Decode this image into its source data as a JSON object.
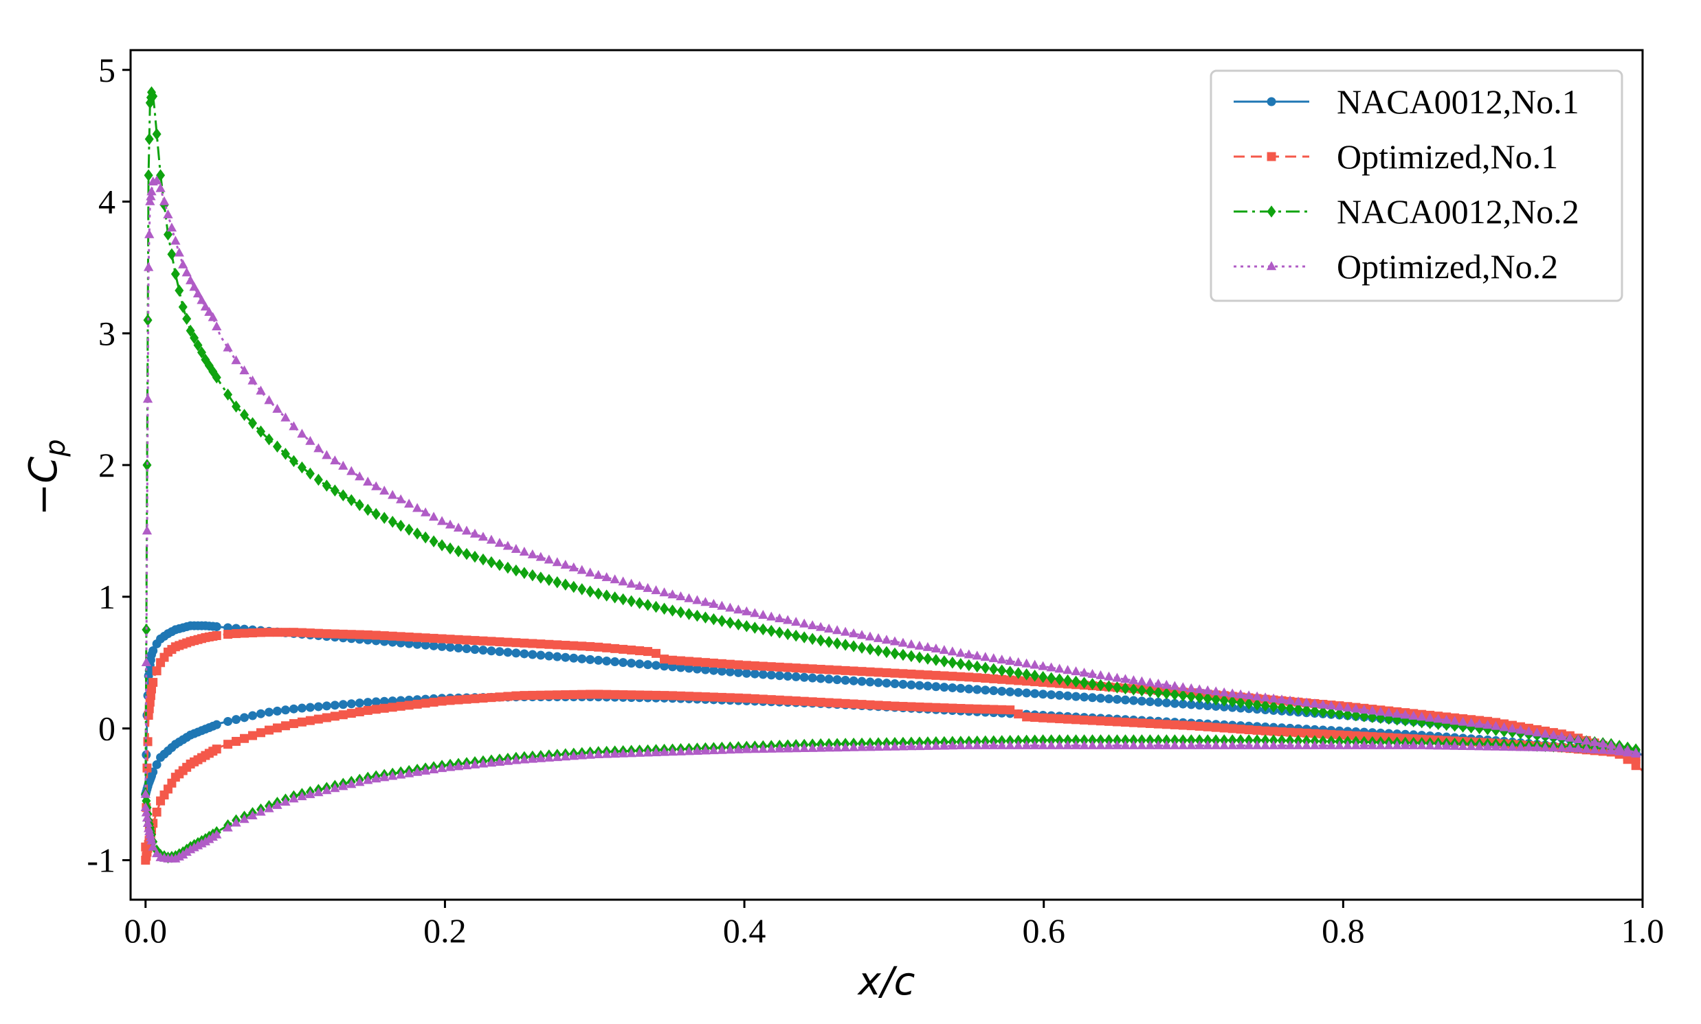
{
  "chart_data": {
    "type": "line",
    "title": "",
    "xlabel": "x/c",
    "ylabel": "−C",
    "ylabel_subscript": "p",
    "xlim": [
      -0.01,
      1.0
    ],
    "ylim": [
      -1.3,
      5.15
    ],
    "xticks": [
      0.0,
      0.2,
      0.4,
      0.6,
      0.8,
      1.0
    ],
    "xtick_labels": [
      "0.0",
      "0.2",
      "0.4",
      "0.6",
      "0.8",
      "1.0"
    ],
    "yticks": [
      -1,
      0,
      1,
      2,
      3,
      4,
      5
    ],
    "ytick_labels": [
      "-1",
      "0",
      "1",
      "2",
      "3",
      "4",
      "5"
    ],
    "grid": false,
    "legend_position": "top-right",
    "series": [
      {
        "name": "NACA0012,No.1",
        "color": "#1f77b4",
        "linestyle": "solid",
        "marker": "circle",
        "upper": {
          "x": [
            0.0,
            0.001,
            0.002,
            0.004,
            0.006,
            0.01,
            0.015,
            0.02,
            0.03,
            0.04,
            0.05,
            0.06,
            0.08,
            0.1,
            0.15,
            0.2,
            0.25,
            0.3,
            0.35,
            0.4,
            0.45,
            0.5,
            0.55,
            0.6,
            0.65,
            0.7,
            0.75,
            0.8,
            0.85,
            0.9,
            0.95,
            0.98,
            1.0
          ],
          "y": [
            -0.5,
            0.1,
            0.4,
            0.56,
            0.62,
            0.68,
            0.72,
            0.75,
            0.78,
            0.78,
            0.77,
            0.76,
            0.74,
            0.72,
            0.67,
            0.62,
            0.57,
            0.52,
            0.47,
            0.42,
            0.38,
            0.34,
            0.3,
            0.26,
            0.22,
            0.18,
            0.14,
            0.1,
            0.05,
            0.0,
            -0.08,
            -0.15,
            -0.2
          ]
        },
        "lower": {
          "x": [
            0.0,
            0.002,
            0.005,
            0.01,
            0.02,
            0.03,
            0.05,
            0.08,
            0.1,
            0.15,
            0.2,
            0.25,
            0.3,
            0.35,
            0.4,
            0.45,
            0.5,
            0.55,
            0.6,
            0.65,
            0.7,
            0.75,
            0.8,
            0.85,
            0.9,
            0.95,
            0.98,
            1.0
          ],
          "y": [
            -0.5,
            -0.42,
            -0.33,
            -0.22,
            -0.12,
            -0.05,
            0.04,
            0.12,
            0.15,
            0.2,
            0.23,
            0.24,
            0.24,
            0.23,
            0.21,
            0.19,
            0.16,
            0.13,
            0.1,
            0.07,
            0.04,
            0.01,
            -0.02,
            -0.05,
            -0.09,
            -0.14,
            -0.17,
            -0.2
          ]
        }
      },
      {
        "name": "Optimized,No.1",
        "color": "#f4584a",
        "linestyle": "dashed",
        "marker": "square",
        "upper": {
          "x": [
            0.0,
            0.001,
            0.002,
            0.004,
            0.006,
            0.01,
            0.015,
            0.02,
            0.03,
            0.04,
            0.05,
            0.06,
            0.08,
            0.1,
            0.12,
            0.15,
            0.2,
            0.25,
            0.3,
            0.32,
            0.34,
            0.345,
            0.35,
            0.4,
            0.45,
            0.5,
            0.55,
            0.6,
            0.65,
            0.7,
            0.75,
            0.8,
            0.85,
            0.9,
            0.95,
            0.98,
            1.0
          ],
          "y": [
            -0.9,
            -0.3,
            0.1,
            0.3,
            0.4,
            0.5,
            0.58,
            0.62,
            0.66,
            0.69,
            0.71,
            0.72,
            0.73,
            0.73,
            0.72,
            0.71,
            0.68,
            0.65,
            0.62,
            0.6,
            0.58,
            0.53,
            0.52,
            0.48,
            0.45,
            0.42,
            0.39,
            0.35,
            0.31,
            0.27,
            0.22,
            0.17,
            0.11,
            0.05,
            -0.05,
            -0.15,
            -0.32
          ]
        },
        "lower": {
          "x": [
            0.0,
            0.002,
            0.005,
            0.01,
            0.02,
            0.03,
            0.05,
            0.08,
            0.1,
            0.15,
            0.2,
            0.25,
            0.3,
            0.35,
            0.4,
            0.45,
            0.5,
            0.55,
            0.58,
            0.585,
            0.6,
            0.65,
            0.7,
            0.75,
            0.8,
            0.85,
            0.9,
            0.95,
            0.98,
            1.0
          ],
          "y": [
            -1.0,
            -0.88,
            -0.72,
            -0.55,
            -0.37,
            -0.27,
            -0.14,
            -0.02,
            0.04,
            0.14,
            0.21,
            0.25,
            0.26,
            0.25,
            0.23,
            0.2,
            0.17,
            0.15,
            0.14,
            0.09,
            0.08,
            0.05,
            0.02,
            -0.02,
            -0.05,
            -0.08,
            -0.11,
            -0.15,
            -0.18,
            -0.25
          ]
        }
      },
      {
        "name": "NACA0012,No.2",
        "color": "#0fa30f",
        "linestyle": "dashdot",
        "marker": "diamond",
        "upper": {
          "x": [
            0.0,
            0.001,
            0.002,
            0.003,
            0.004,
            0.005,
            0.006,
            0.008,
            0.01,
            0.015,
            0.02,
            0.025,
            0.03,
            0.04,
            0.05,
            0.06,
            0.08,
            0.1,
            0.12,
            0.15,
            0.2,
            0.25,
            0.3,
            0.35,
            0.4,
            0.45,
            0.5,
            0.55,
            0.6,
            0.65,
            0.7,
            0.75,
            0.8,
            0.85,
            0.9,
            0.95,
            0.98,
            1.0
          ],
          "y": [
            -0.5,
            2.0,
            4.2,
            4.75,
            4.83,
            4.8,
            4.7,
            4.45,
            4.2,
            3.75,
            3.45,
            3.2,
            3.02,
            2.8,
            2.62,
            2.45,
            2.22,
            2.02,
            1.85,
            1.65,
            1.38,
            1.19,
            1.03,
            0.9,
            0.78,
            0.67,
            0.57,
            0.48,
            0.39,
            0.31,
            0.24,
            0.17,
            0.11,
            0.05,
            -0.01,
            -0.08,
            -0.12,
            -0.17
          ]
        },
        "lower": {
          "x": [
            0.0,
            0.002,
            0.005,
            0.008,
            0.01,
            0.015,
            0.02,
            0.025,
            0.03,
            0.04,
            0.05,
            0.06,
            0.08,
            0.1,
            0.15,
            0.2,
            0.25,
            0.3,
            0.35,
            0.4,
            0.45,
            0.5,
            0.55,
            0.6,
            0.65,
            0.7,
            0.75,
            0.8,
            0.85,
            0.9,
            0.95,
            0.98,
            1.0
          ],
          "y": [
            -0.5,
            -0.7,
            -0.86,
            -0.94,
            -0.96,
            -0.98,
            -0.97,
            -0.94,
            -0.9,
            -0.84,
            -0.77,
            -0.7,
            -0.6,
            -0.51,
            -0.37,
            -0.28,
            -0.22,
            -0.18,
            -0.16,
            -0.14,
            -0.12,
            -0.11,
            -0.1,
            -0.09,
            -0.09,
            -0.09,
            -0.09,
            -0.1,
            -0.11,
            -0.12,
            -0.14,
            -0.15,
            -0.17
          ]
        }
      },
      {
        "name": "Optimized,No.2",
        "color": "#b05cc6",
        "linestyle": "dotted",
        "marker": "triangle",
        "upper": {
          "x": [
            0.0,
            0.001,
            0.002,
            0.003,
            0.005,
            0.007,
            0.01,
            0.015,
            0.02,
            0.025,
            0.03,
            0.04,
            0.045,
            0.05,
            0.06,
            0.08,
            0.1,
            0.12,
            0.15,
            0.2,
            0.25,
            0.3,
            0.35,
            0.4,
            0.45,
            0.5,
            0.55,
            0.6,
            0.65,
            0.7,
            0.75,
            0.8,
            0.85,
            0.9,
            0.95,
            0.98,
            1.0
          ],
          "y": [
            -0.5,
            1.5,
            3.5,
            4.0,
            4.15,
            4.17,
            4.1,
            3.9,
            3.7,
            3.52,
            3.4,
            3.2,
            3.12,
            2.98,
            2.8,
            2.52,
            2.28,
            2.08,
            1.86,
            1.56,
            1.35,
            1.17,
            1.02,
            0.89,
            0.77,
            0.66,
            0.56,
            0.47,
            0.38,
            0.3,
            0.23,
            0.16,
            0.09,
            0.02,
            -0.07,
            -0.13,
            -0.2
          ]
        },
        "lower": {
          "x": [
            0.0,
            0.002,
            0.005,
            0.008,
            0.01,
            0.015,
            0.02,
            0.025,
            0.03,
            0.04,
            0.05,
            0.06,
            0.08,
            0.1,
            0.15,
            0.2,
            0.25,
            0.3,
            0.35,
            0.4,
            0.45,
            0.5,
            0.55,
            0.6,
            0.65,
            0.7,
            0.75,
            0.8,
            0.85,
            0.9,
            0.95,
            0.98,
            1.0
          ],
          "y": [
            -0.6,
            -0.76,
            -0.9,
            -0.96,
            -0.98,
            -0.99,
            -0.99,
            -0.96,
            -0.92,
            -0.86,
            -0.79,
            -0.72,
            -0.62,
            -0.53,
            -0.39,
            -0.3,
            -0.24,
            -0.2,
            -0.18,
            -0.16,
            -0.15,
            -0.14,
            -0.13,
            -0.13,
            -0.13,
            -0.13,
            -0.13,
            -0.13,
            -0.13,
            -0.14,
            -0.15,
            -0.17,
            -0.2
          ]
        }
      }
    ]
  }
}
